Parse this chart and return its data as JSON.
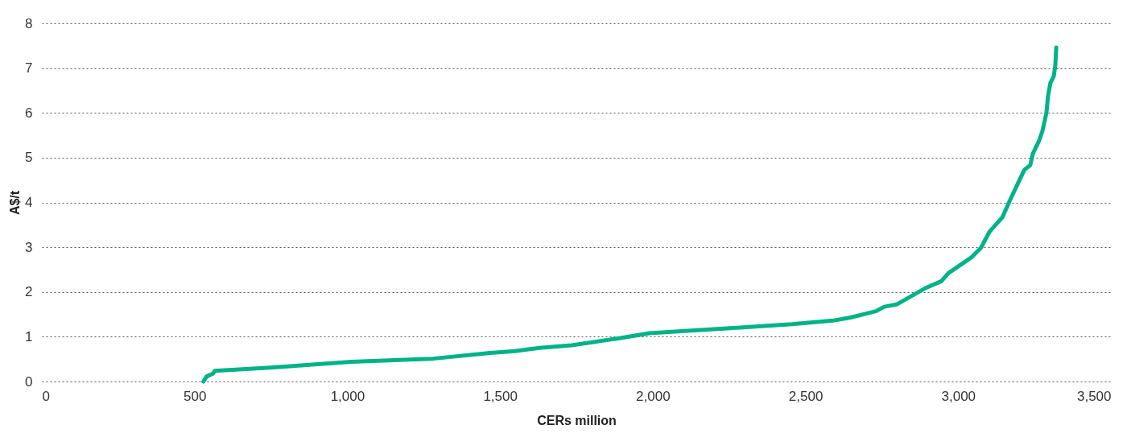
{
  "chart_data": {
    "type": "line",
    "xlabel": "CERs million",
    "ylabel": "A$/t",
    "x": [
      529,
      539,
      561,
      566,
      748,
      1014,
      1281,
      1468,
      1548,
      1629,
      1735,
      1895,
      1989,
      2136,
      2296,
      2456,
      2590,
      2648,
      2731,
      2758,
      2798,
      2891,
      2945,
      2968,
      3043,
      3075,
      3102,
      3145,
      3169,
      3198,
      3217,
      3236,
      3244,
      3265,
      3276,
      3289,
      3294,
      3302,
      3313,
      3318,
      3321
    ],
    "series": [
      {
        "color": "#00b386",
        "values": [
          0,
          0.11,
          0.18,
          0.24,
          0.31,
          0.44,
          0.51,
          0.64,
          0.68,
          0.75,
          0.81,
          0.97,
          1.08,
          1.14,
          1.21,
          1.28,
          1.36,
          1.43,
          1.57,
          1.67,
          1.72,
          2.08,
          2.24,
          2.42,
          2.77,
          2.99,
          3.34,
          3.67,
          4.04,
          4.46,
          4.73,
          4.83,
          5.08,
          5.38,
          5.6,
          6.0,
          6.37,
          6.67,
          6.82,
          7.06,
          7.46
        ]
      }
    ],
    "xlim": [
      0,
      3500
    ],
    "xticks": [
      {
        "value": 0,
        "label": "0"
      },
      {
        "value": 500,
        "label": "500"
      },
      {
        "value": 1000,
        "label": "1,000"
      },
      {
        "value": 1500,
        "label": "1,500"
      },
      {
        "value": 2000,
        "label": "2,000"
      },
      {
        "value": 2500,
        "label": "2,500"
      },
      {
        "value": 3000,
        "label": "3,000"
      },
      {
        "value": 3500,
        "label": "3,500"
      }
    ],
    "ylim": [
      0,
      8
    ],
    "yticks": [
      0,
      1,
      2,
      3,
      4,
      5,
      6,
      7,
      8
    ],
    "grid": "y",
    "line_style": "solid"
  }
}
